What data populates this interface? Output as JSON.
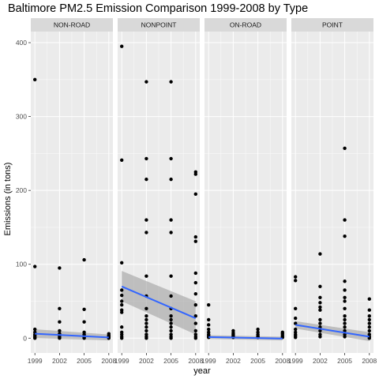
{
  "chart_data": {
    "type": "scatter",
    "title": "Baltimore PM2.5 Emission Comparison 1999-2008 by Type",
    "xlabel": "year",
    "ylabel": "Emissions (in tons)",
    "x_ticks": [
      1999,
      2002,
      2005,
      2008
    ],
    "y_ticks": [
      0,
      100,
      200,
      300,
      400
    ],
    "xlim": [
      1998.5,
      2008.5
    ],
    "ylim": [
      -20,
      415
    ],
    "grid": true,
    "facets": [
      "NON-ROAD",
      "NONPOINT",
      "ON-ROAD",
      "POINT"
    ],
    "colors": {
      "panel_background": "#ebebeb",
      "strip_background": "#d9d9d9",
      "grid": "#ffffff",
      "points": "#000000",
      "fit_line": "#3366ff",
      "confidence_band": "#999999"
    },
    "panels": [
      {
        "facet": "NON-ROAD",
        "points": [
          {
            "x": 1999,
            "y": [
              350,
              97,
              12,
              8,
              5,
              3,
              1,
              0
            ]
          },
          {
            "x": 2002,
            "y": [
              95,
              40,
              22,
              10,
              6,
              3,
              1,
              0
            ]
          },
          {
            "x": 2005,
            "y": [
              106,
              39,
              22,
              8,
              5,
              3,
              1,
              0
            ]
          },
          {
            "x": 2008,
            "y": [
              6,
              4,
              3,
              2,
              1,
              0
            ]
          }
        ],
        "fit": {
          "y_start": 6,
          "y_end": 1,
          "band_start": [
            0,
            12
          ],
          "band_end": [
            -3,
            5
          ]
        }
      },
      {
        "facet": "NONPOINT",
        "points": [
          {
            "x": 1999,
            "y": [
              395,
              241,
              102,
              65,
              58,
              50,
              45,
              38,
              35,
              15,
              8,
              5,
              2,
              0
            ]
          },
          {
            "x": 2002,
            "y": [
              347,
              243,
              215,
              160,
              143,
              84,
              57,
              40,
              30,
              25,
              20,
              15,
              10,
              5,
              2,
              0
            ]
          },
          {
            "x": 2005,
            "y": [
              347,
              243,
              215,
              160,
              143,
              84,
              57,
              40,
              30,
              25,
              20,
              15,
              10,
              5,
              2,
              0
            ]
          },
          {
            "x": 2008,
            "y": [
              225,
              222,
              195,
              137,
              131,
              88,
              75,
              60,
              45,
              30,
              20,
              10,
              5,
              2,
              0
            ]
          }
        ],
        "fit": {
          "y_start": 70,
          "y_end": 27,
          "band_start": [
            50,
            91
          ],
          "band_end": [
            5,
            50
          ]
        }
      },
      {
        "facet": "ON-ROAD",
        "points": [
          {
            "x": 1999,
            "y": [
              45,
              25,
              18,
              12,
              8,
              5,
              3,
              1
            ]
          },
          {
            "x": 2002,
            "y": [
              10,
              7,
              5,
              3,
              2,
              1
            ]
          },
          {
            "x": 2005,
            "y": [
              12,
              8,
              5,
              3,
              2,
              1
            ]
          },
          {
            "x": 2008,
            "y": [
              8,
              6,
              4,
              2,
              1
            ]
          }
        ],
        "fit": {
          "y_start": 1.5,
          "y_end": -0.5,
          "band_start": [
            -1,
            4
          ],
          "band_end": [
            -3,
            2
          ]
        }
      },
      {
        "facet": "POINT",
        "points": [
          {
            "x": 1999,
            "y": [
              83,
              78,
              40,
              27,
              20,
              12,
              8,
              5,
              3,
              1
            ]
          },
          {
            "x": 2002,
            "y": [
              114,
              70,
              55,
              48,
              42,
              38,
              25,
              20,
              15,
              10,
              5,
              2
            ]
          },
          {
            "x": 2005,
            "y": [
              257,
              160,
              138,
              77,
              65,
              55,
              50,
              40,
              30,
              25,
              20,
              15,
              10,
              5,
              2
            ]
          },
          {
            "x": 2008,
            "y": [
              53,
              38,
              30,
              25,
              20,
              15,
              10,
              5,
              2,
              0
            ]
          }
        ],
        "fit": {
          "y_start": 18,
          "y_end": 2,
          "band_start": [
            13,
            23
          ],
          "band_end": [
            -4,
            8
          ]
        }
      }
    ]
  }
}
